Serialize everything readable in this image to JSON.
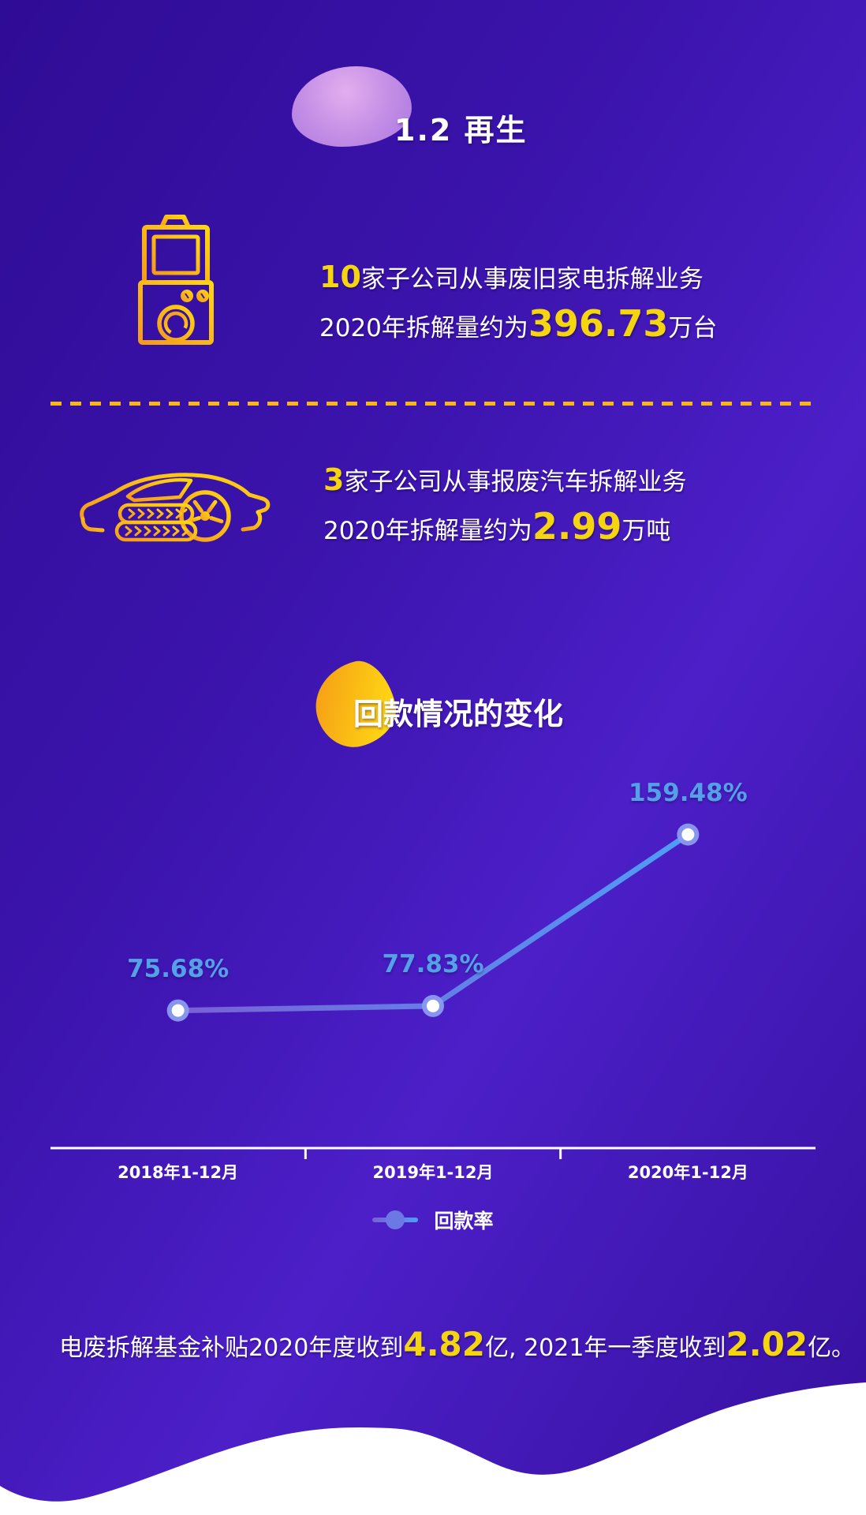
{
  "header": {
    "title": "1.2 再生"
  },
  "stats": [
    {
      "icon": "washing-machine-tv-icon",
      "line1_value": "10",
      "line1_text": "家子公司从事废旧家电拆解业务",
      "line2_prefix": "2020年拆解量约为",
      "line2_value": "396.73",
      "line2_unit": "万台"
    },
    {
      "icon": "scrap-car-icon",
      "line1_value": "3",
      "line1_text": "家子公司从事报废汽车拆解业务",
      "line2_prefix": "2020年拆解量约为",
      "line2_value": "2.99",
      "line2_unit": "万吨"
    }
  ],
  "chart_data": {
    "type": "line",
    "title": "回款情况的变化",
    "categories": [
      "2018年1-12月",
      "2019年1-12月",
      "2020年1-12月"
    ],
    "series": [
      {
        "name": "回款率",
        "values": [
          75.68,
          77.83,
          159.48
        ]
      }
    ],
    "value_labels": [
      "75.68%",
      "77.83%",
      "159.48%"
    ],
    "ylim": [
      0,
      190
    ],
    "grid": false,
    "legend_position": "bottom",
    "unit": "%"
  },
  "footnote": {
    "part1": "电废拆解基金补贴2020年度收到",
    "value1": "4.82",
    "part2": "亿, 2021年一季度收到",
    "value2": "2.02",
    "part3": "亿。"
  },
  "colors": {
    "background_purple": "#3c14ae",
    "accent_yellow": "#f5d410",
    "icon_gold": "#f8b117",
    "chart_value_blue": "#55a0e8",
    "line_gradient_start": "#7a5fd6",
    "line_gradient_end": "#4e9ef5",
    "legend_dot_blue": "#6c79e4"
  }
}
